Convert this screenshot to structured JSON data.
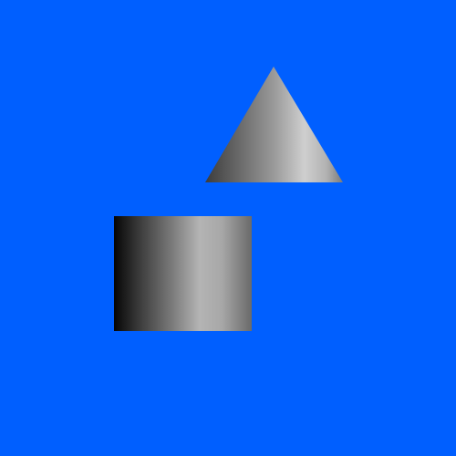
{
  "scene": {
    "background_color": "#005FFF",
    "objects": [
      {
        "kind": "cone",
        "color": "#9A9A9A"
      },
      {
        "kind": "cylinder",
        "color": "#8C8C8C"
      }
    ]
  }
}
